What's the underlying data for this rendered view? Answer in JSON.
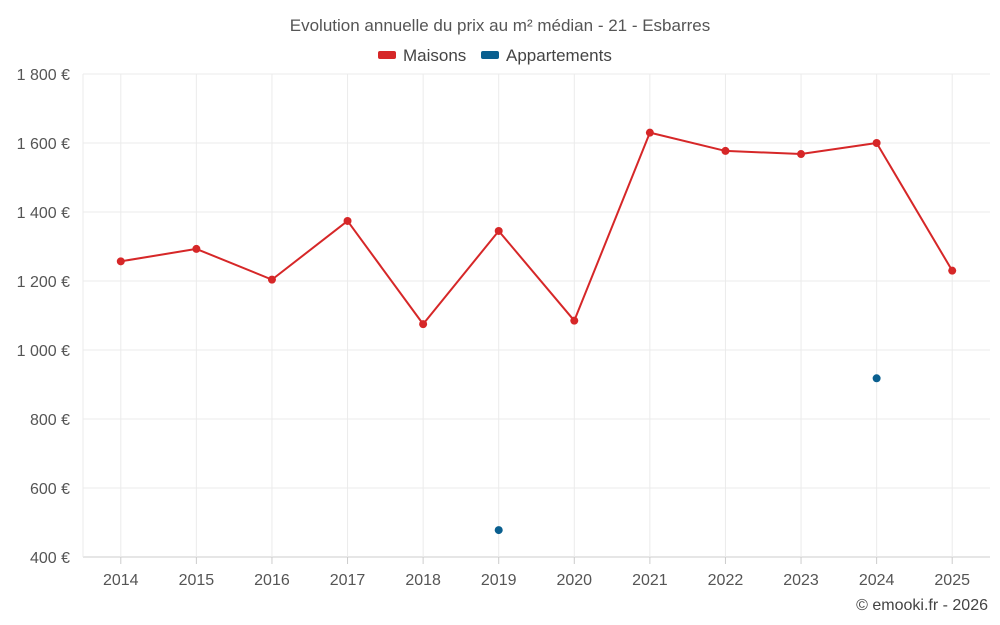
{
  "chart_data": {
    "type": "line",
    "title": "Evolution annuelle du prix au m² médian - 21 - Esbarres",
    "categories": [
      "2014",
      "2015",
      "2016",
      "2017",
      "2018",
      "2019",
      "2020",
      "2021",
      "2022",
      "2023",
      "2024",
      "2025"
    ],
    "ylim": [
      400,
      1800
    ],
    "yticks": [
      400,
      600,
      800,
      1000,
      1200,
      1400,
      1600,
      1800
    ],
    "ytick_labels": [
      "400 €",
      "600 €",
      "800 €",
      "1 000 €",
      "1 200 €",
      "1 400 €",
      "1 600 €",
      "1 800 €"
    ],
    "grid": true,
    "legend_position": "top-center",
    "series": [
      {
        "name": "Maisons",
        "color": "#d62728",
        "line": true,
        "values": [
          1257,
          1293,
          1204,
          1374,
          1075,
          1345,
          1085,
          1630,
          1577,
          1568,
          1600,
          1230
        ]
      },
      {
        "name": "Appartements",
        "color": "#0a5f8f",
        "line": false,
        "values": [
          null,
          null,
          null,
          null,
          null,
          478,
          null,
          null,
          null,
          null,
          918,
          null
        ]
      }
    ]
  },
  "credit": "© emooki.fr - 2026"
}
